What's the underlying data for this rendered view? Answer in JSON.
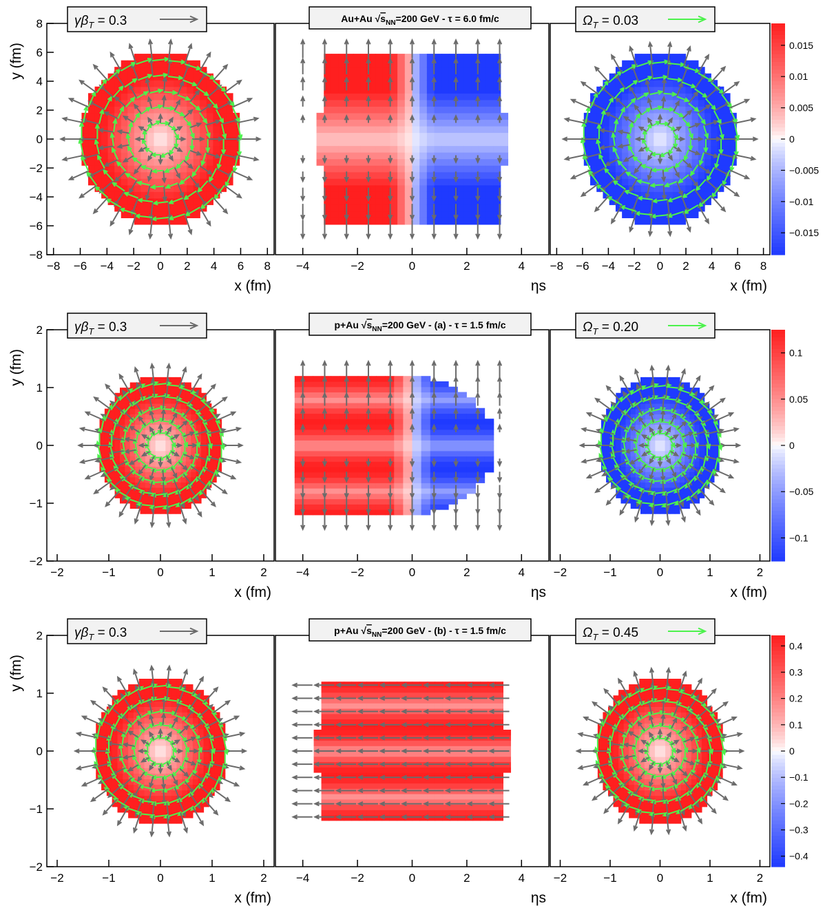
{
  "colors": {
    "flow_arrow": "#6b6b6b",
    "vorticity_arrow": "#4cf24c",
    "positive": "#ff1f1f",
    "negative": "#1f3aff",
    "neutral": "#ffffff"
  },
  "chart_data": [
    {
      "row": 1,
      "type": "heatmap",
      "title_prefix": "Au+Au ",
      "title_sqrt": "s",
      "title_sub": "NN",
      "title_suffix": "=200 GeV - τ = 6.0 fm/c",
      "legend_left": {
        "symbol": "γβ",
        "sub": "T",
        "text": " = 0.3",
        "arrow": "flow_arrow"
      },
      "legend_right": {
        "symbol": "Ω",
        "sub": "T",
        "text": " = 0.03",
        "arrow": "vorticity_arrow"
      },
      "panels": [
        {
          "xlabel": "x (fm)",
          "ylabel": "y (fm)",
          "xlim": [
            -8.5,
            8.5
          ],
          "ylim": [
            -8,
            8
          ],
          "xticks": [
            -8,
            -6,
            -4,
            -2,
            0,
            2,
            4,
            6,
            8
          ],
          "yticks": [
            -8,
            -6,
            -4,
            -2,
            0,
            2,
            4,
            6,
            8
          ],
          "shape": "disk",
          "radius": 5.9,
          "sign": "positive",
          "profile": "ring"
        },
        {
          "xlabel": "ηs",
          "ylabel": "",
          "xlim": [
            -5,
            5
          ],
          "ylim": [
            -8,
            8
          ],
          "xticks": [
            -4,
            -2,
            0,
            2,
            4
          ],
          "yticks": [],
          "shape": "ellipse",
          "half_width": 3.5,
          "radius": 5.9,
          "sign": "antisymmetric",
          "profile": "yband"
        },
        {
          "xlabel": "x (fm)",
          "ylabel": "",
          "xlim": [
            -8.5,
            8.5
          ],
          "ylim": [
            -8,
            8
          ],
          "xticks": [
            -8,
            -6,
            -4,
            -2,
            0,
            2,
            4,
            6,
            8
          ],
          "yticks": [],
          "shape": "disk",
          "radius": 5.9,
          "sign": "negative",
          "profile": "ring"
        }
      ],
      "colorbar": {
        "min": -0.0185,
        "max": 0.0185,
        "ticks": [
          -0.015,
          -0.01,
          -0.005,
          0,
          0.005,
          0.01,
          0.015
        ],
        "tick_labels": [
          "−0.015",
          "−0.01",
          "−0.005",
          "0",
          "0.005",
          "0.01",
          "0.015"
        ]
      }
    },
    {
      "row": 2,
      "type": "heatmap",
      "title_prefix": "p+Au ",
      "title_sqrt": "s",
      "title_sub": "NN",
      "title_suffix": "=200 GeV - (a) - τ = 1.5 fm/c",
      "legend_left": {
        "symbol": "γβ",
        "sub": "T",
        "text": " = 0.3",
        "arrow": "flow_arrow"
      },
      "legend_right": {
        "symbol": "Ω",
        "sub": "T",
        "text": " = 0.20",
        "arrow": "vorticity_arrow"
      },
      "panels": [
        {
          "xlabel": "x (fm)",
          "ylabel": "y (fm)",
          "xlim": [
            -2.2,
            2.2
          ],
          "ylim": [
            -2,
            2
          ],
          "xticks": [
            -2,
            -1,
            0,
            1,
            2
          ],
          "yticks": [
            -2,
            -1,
            0,
            1,
            2
          ],
          "shape": "blob",
          "radius": 1.18,
          "sign": "positive",
          "profile": "ring"
        },
        {
          "xlabel": "ηs",
          "ylabel": "",
          "xlim": [
            -5,
            5
          ],
          "ylim": [
            -2,
            2
          ],
          "xticks": [
            -4,
            -2,
            0,
            2,
            4
          ],
          "yticks": [],
          "shape": "halfmoon",
          "half_width": 4.3,
          "radius": 1.2,
          "sign": "antisymmetric",
          "profile": "stripes"
        },
        {
          "xlabel": "x (fm)",
          "ylabel": "",
          "xlim": [
            -2.2,
            2.2
          ],
          "ylim": [
            -2,
            2
          ],
          "xticks": [
            -2,
            -1,
            0,
            1,
            2
          ],
          "yticks": [],
          "shape": "blob",
          "radius": 1.18,
          "sign": "negative",
          "profile": "ring"
        }
      ],
      "colorbar": {
        "min": -0.125,
        "max": 0.125,
        "ticks": [
          -0.1,
          -0.05,
          0,
          0.05,
          0.1
        ],
        "tick_labels": [
          "−0.1",
          "−0.05",
          "0",
          "0.05",
          "0.1"
        ]
      }
    },
    {
      "row": 3,
      "type": "heatmap",
      "title_prefix": "p+Au ",
      "title_sqrt": "s",
      "title_sub": "NN",
      "title_suffix": "=200 GeV - (b) - τ = 1.5 fm/c",
      "legend_left": {
        "symbol": "γβ",
        "sub": "T",
        "text": " = 0.3",
        "arrow": "flow_arrow"
      },
      "legend_right": {
        "symbol": "Ω",
        "sub": "T",
        "text": " = 0.45",
        "arrow": "vorticity_arrow"
      },
      "panels": [
        {
          "xlabel": "x (fm)",
          "ylabel": "y (fm)",
          "xlim": [
            -2.2,
            2.2
          ],
          "ylim": [
            -2,
            2
          ],
          "xticks": [
            -2,
            -1,
            0,
            1,
            2
          ],
          "yticks": [
            -2,
            -1,
            0,
            1,
            2
          ],
          "shape": "blob",
          "radius": 1.25,
          "sign": "positive",
          "profile": "ring"
        },
        {
          "xlabel": "ηs",
          "ylabel": "",
          "xlim": [
            -5,
            5
          ],
          "ylim": [
            -2,
            2
          ],
          "xticks": [
            -4,
            -2,
            0,
            2,
            4
          ],
          "yticks": [],
          "shape": "ellipse",
          "half_width": 3.6,
          "radius": 1.2,
          "sign": "positive",
          "profile": "stripes"
        },
        {
          "xlabel": "x (fm)",
          "ylabel": "",
          "xlim": [
            -2.2,
            2.2
          ],
          "ylim": [
            -2,
            2
          ],
          "xticks": [
            -2,
            -1,
            0,
            1,
            2
          ],
          "yticks": [],
          "shape": "blob",
          "radius": 1.25,
          "sign": "positive",
          "profile": "ring"
        }
      ],
      "colorbar": {
        "min": -0.44,
        "max": 0.44,
        "ticks": [
          -0.4,
          -0.3,
          -0.2,
          -0.1,
          0,
          0.1,
          0.2,
          0.3,
          0.4
        ],
        "tick_labels": [
          "−0.4",
          "−0.3",
          "−0.2",
          "−0.1",
          "0",
          "0.1",
          "0.2",
          "0.3",
          "0.4"
        ]
      }
    }
  ]
}
